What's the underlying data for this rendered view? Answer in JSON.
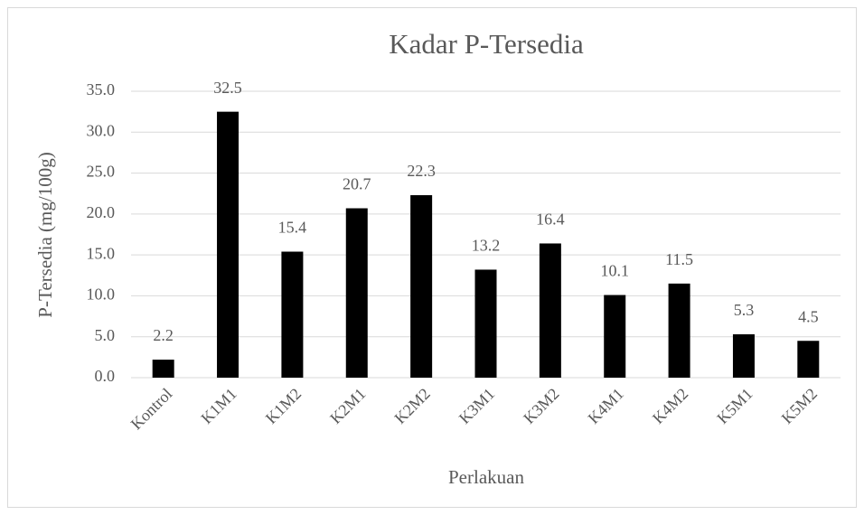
{
  "chart_data": {
    "type": "bar",
    "title": "Kadar P-Tersedia",
    "x_label": "Perlakuan",
    "y_label": "P-Tersedia (mg/100g)",
    "categories": [
      "Kontrol",
      "K1M1",
      "K1M2",
      "K2M1",
      "K2M2",
      "K3M1",
      "K3M2",
      "K4M1",
      "K4M2",
      "K5M1",
      "K5M2"
    ],
    "values": [
      2.2,
      32.5,
      15.4,
      20.7,
      22.3,
      13.2,
      16.4,
      10.1,
      11.5,
      5.3,
      4.5
    ],
    "color": "#000000",
    "ylim": [
      0,
      35
    ],
    "yticks": [
      {
        "value": 0,
        "label": "0.0"
      },
      {
        "value": 5,
        "label": "5.0"
      },
      {
        "value": 10,
        "label": "10.0"
      },
      {
        "value": 15,
        "label": "15.0"
      },
      {
        "value": 20,
        "label": "20.0"
      },
      {
        "value": 25,
        "label": "25.0"
      },
      {
        "value": 30,
        "label": "30.0"
      },
      {
        "value": 35,
        "label": "35.0"
      }
    ],
    "grid": true
  }
}
